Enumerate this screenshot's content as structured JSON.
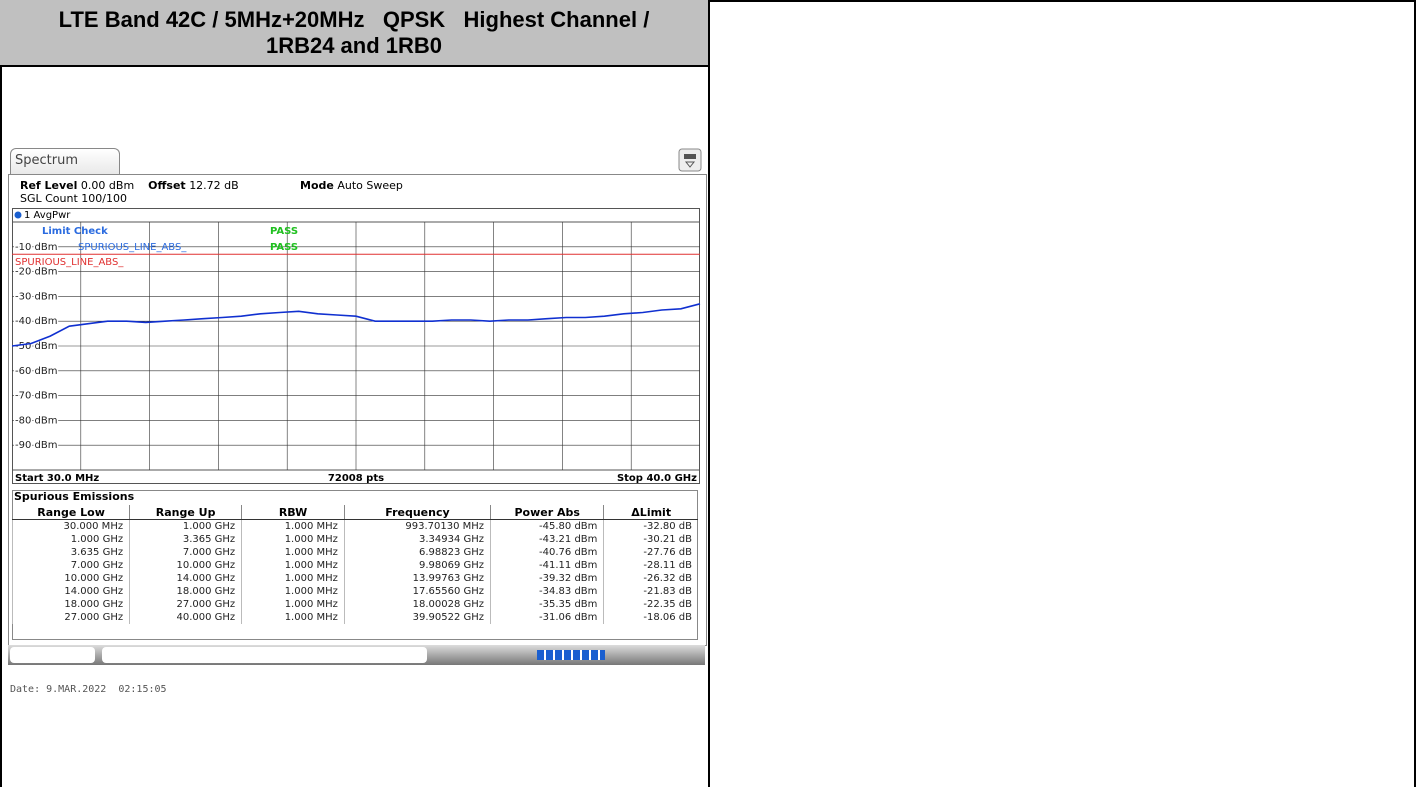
{
  "title": "LTE Band 42C / 5MHz+20MHz   QPSK   Highest Channel / 1RB24 and 1RB0",
  "screen": {
    "tab": "Spectrum",
    "ref_level_label": "Ref Level",
    "ref_level": "0.00 dBm",
    "offset_label": "Offset",
    "offset": "12.72 dB",
    "mode_label": "Mode",
    "mode": "Auto Sweep",
    "sgl_count": "SGL Count 100/100",
    "trace_label": "1 AvgPwr",
    "limit_check": "Limit Check",
    "pass": "PASS",
    "limit_line": "SPURIOUS_LINE_ABS_",
    "start": "Start 30.0 MHz",
    "points": "72008 pts",
    "stop": "Stop 40.0 GHz"
  },
  "chart_data": {
    "type": "line",
    "ylim": [
      -100,
      0
    ],
    "yticks": [
      {
        "value": -10,
        "label": "-10 dBm"
      },
      {
        "value": -20,
        "label": "-20 dBm"
      },
      {
        "value": -30,
        "label": "-30 dBm"
      },
      {
        "value": -40,
        "label": "-40 dBm"
      },
      {
        "value": -50,
        "label": "-50 dBm"
      },
      {
        "value": -60,
        "label": "-60 dBm"
      },
      {
        "value": -70,
        "label": "-70 dBm"
      },
      {
        "value": -80,
        "label": "-80 dBm"
      },
      {
        "value": -90,
        "label": "-90 dBm"
      }
    ],
    "limit": -13,
    "limit_color": "#e03030",
    "color": "#1030d0",
    "grid": true,
    "trace": [
      -50,
      -49,
      -46,
      -42,
      -41,
      -40,
      -40,
      -40.5,
      -40,
      -39.5,
      -39,
      -38.5,
      -38,
      -37,
      -36.5,
      -36,
      -37,
      -37.5,
      -38,
      -40,
      -40,
      -40,
      -40,
      -39.5,
      -39.5,
      -40,
      -39.5,
      -39.5,
      -39,
      -38.5,
      -38.5,
      -38,
      -37,
      -36.5,
      -35.5,
      -35,
      -33
    ]
  },
  "table": {
    "title": "Spurious Emissions",
    "headers": [
      "Range Low",
      "Range Up",
      "RBW",
      "Frequency",
      "Power Abs",
      "ΔLimit"
    ],
    "rows": [
      [
        "30.000 MHz",
        "1.000 GHz",
        "1.000 MHz",
        "993.70130 MHz",
        "-45.80 dBm",
        "-32.80 dB"
      ],
      [
        "1.000 GHz",
        "3.365 GHz",
        "1.000 MHz",
        "3.34934 GHz",
        "-43.21 dBm",
        "-30.21 dB"
      ],
      [
        "3.635 GHz",
        "7.000 GHz",
        "1.000 MHz",
        "6.98823 GHz",
        "-40.76 dBm",
        "-27.76 dB"
      ],
      [
        "7.000 GHz",
        "10.000 GHz",
        "1.000 MHz",
        "9.98069 GHz",
        "-41.11 dBm",
        "-28.11 dB"
      ],
      [
        "10.000 GHz",
        "14.000 GHz",
        "1.000 MHz",
        "13.99763 GHz",
        "-39.32 dBm",
        "-26.32 dB"
      ],
      [
        "14.000 GHz",
        "18.000 GHz",
        "1.000 MHz",
        "17.65560 GHz",
        "-34.83 dBm",
        "-21.83 dB"
      ],
      [
        "18.000 GHz",
        "27.000 GHz",
        "1.000 MHz",
        "18.00028 GHz",
        "-35.35 dBm",
        "-22.35 dB"
      ],
      [
        "27.000 GHz",
        "40.000 GHz",
        "1.000 MHz",
        "39.90522 GHz",
        "-31.06 dBm",
        "-18.06 dB"
      ]
    ]
  },
  "date": "Date: 9.MAR.2022  02:15:05"
}
